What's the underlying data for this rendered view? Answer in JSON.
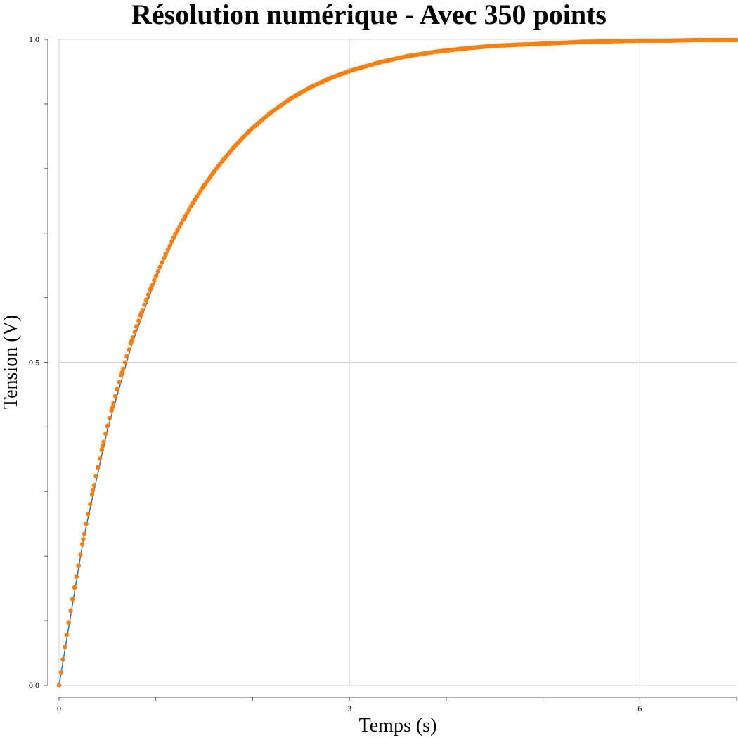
{
  "chart_data": {
    "type": "line",
    "title": "Résolution numérique - Avec 350 points",
    "xlabel": "Temps (s)",
    "ylabel": "Tension (V)",
    "xlim": [
      0,
      7
    ],
    "ylim": [
      0,
      1
    ],
    "x_ticks": [
      {
        "value": 0,
        "label": "0"
      },
      {
        "value": 1,
        "label": ""
      },
      {
        "value": 2,
        "label": ""
      },
      {
        "value": 3,
        "label": "3"
      },
      {
        "value": 4,
        "label": ""
      },
      {
        "value": 5,
        "label": ""
      },
      {
        "value": 6,
        "label": "6"
      },
      {
        "value": 7,
        "label": ""
      }
    ],
    "y_ticks": [
      {
        "value": 0.0,
        "label": "0.0"
      },
      {
        "value": 0.1,
        "label": ""
      },
      {
        "value": 0.2,
        "label": ""
      },
      {
        "value": 0.3,
        "label": ""
      },
      {
        "value": 0.4,
        "label": ""
      },
      {
        "value": 0.5,
        "label": "0.5"
      },
      {
        "value": 0.6,
        "label": ""
      },
      {
        "value": 0.7,
        "label": ""
      },
      {
        "value": 0.8,
        "label": ""
      },
      {
        "value": 0.9,
        "label": ""
      },
      {
        "value": 1.0,
        "label": "1.0"
      }
    ],
    "x_gridlines": [
      0,
      3,
      6
    ],
    "y_gridlines": [
      0,
      0.5,
      1
    ],
    "grid": true,
    "legend": "none",
    "series": [
      {
        "kind": "line",
        "color": "#1f77b4",
        "x": [
          0,
          0.25,
          0.5,
          0.75,
          1.0,
          1.25,
          1.5,
          1.75,
          2.0,
          2.25,
          2.5,
          2.75,
          3.0,
          3.5,
          4.0,
          4.5,
          5.0,
          5.5,
          6.0,
          6.5,
          7.0
        ],
        "y": [
          0,
          0.225,
          0.396,
          0.527,
          0.63,
          0.711,
          0.775,
          0.826,
          0.865,
          0.895,
          0.918,
          0.936,
          0.95,
          0.97,
          0.982,
          0.989,
          0.993,
          0.996,
          0.998,
          0.999,
          0.999
        ]
      },
      {
        "kind": "scatter",
        "color": "#ff7f0e",
        "x": [
          0,
          0.02,
          0.04,
          0.06,
          0.08,
          0.1,
          0.12,
          0.14,
          0.16,
          0.18,
          0.2,
          0.25,
          0.3,
          0.35,
          0.4,
          0.45,
          0.5,
          0.55,
          0.6,
          0.65,
          0.7,
          0.75,
          0.8,
          0.85,
          0.9,
          0.95,
          1.0,
          1.1,
          1.2,
          1.3,
          1.4,
          1.5,
          1.6,
          1.7,
          1.8,
          1.9,
          2.0,
          2.2,
          2.4,
          2.6,
          2.8,
          3.0,
          3.3,
          3.6,
          3.9,
          4.2,
          4.5,
          4.8,
          5.1,
          5.4,
          5.7,
          6.0,
          6.3,
          6.6,
          7.0
        ],
        "y": [
          0,
          0.02,
          0.04,
          0.059,
          0.078,
          0.097,
          0.115,
          0.133,
          0.151,
          0.168,
          0.185,
          0.226,
          0.265,
          0.302,
          0.337,
          0.37,
          0.401,
          0.43,
          0.458,
          0.484,
          0.509,
          0.533,
          0.555,
          0.576,
          0.596,
          0.615,
          0.633,
          0.667,
          0.698,
          0.725,
          0.751,
          0.774,
          0.795,
          0.814,
          0.832,
          0.848,
          0.863,
          0.888,
          0.909,
          0.926,
          0.94,
          0.951,
          0.964,
          0.974,
          0.981,
          0.986,
          0.99,
          0.992,
          0.994,
          0.996,
          0.997,
          0.998,
          0.998,
          0.999,
          0.999
        ]
      }
    ]
  }
}
